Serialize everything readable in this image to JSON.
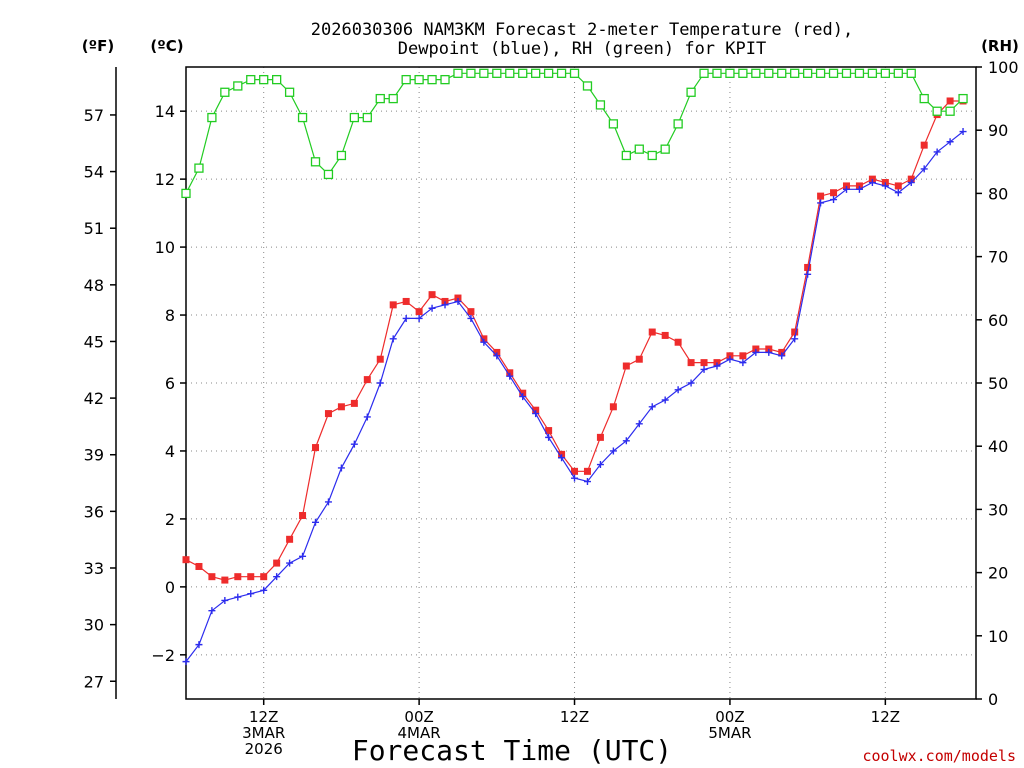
{
  "chart_data": {
    "type": "line",
    "title_lines": [
      "2026030306 NAM3KM Forecast 2-meter Temperature (red),",
      "Dewpoint (blue), RH (green) for KPIT"
    ],
    "xlabel": "Forecast Time (UTC)",
    "credit": "coolwx.com/models",
    "units": {
      "left_f": "(ºF)",
      "left_c": "(ºC)",
      "right": "(RH)"
    },
    "hour_range": [
      0,
      61
    ],
    "x_ticks": [
      {
        "hour": 6,
        "lines": [
          "12Z",
          "3MAR",
          "2026"
        ]
      },
      {
        "hour": 18,
        "lines": [
          "00Z",
          "4MAR"
        ]
      },
      {
        "hour": 30,
        "lines": [
          "12Z"
        ]
      },
      {
        "hour": 42,
        "lines": [
          "00Z",
          "5MAR"
        ]
      },
      {
        "hour": 54,
        "lines": [
          "12Z"
        ]
      }
    ],
    "y_celsius": {
      "range": [
        -3.3,
        15.3
      ],
      "ticks": [
        -2,
        0,
        2,
        4,
        6,
        8,
        10,
        12,
        14
      ]
    },
    "y_fahrenheit": {
      "ticks": [
        27,
        30,
        33,
        36,
        39,
        42,
        45,
        48,
        51,
        54,
        57
      ]
    },
    "y_rh": {
      "range": [
        0,
        100
      ],
      "ticks": [
        0,
        10,
        20,
        30,
        40,
        50,
        60,
        70,
        80,
        90,
        100
      ]
    },
    "series": [
      {
        "name": "Temperature",
        "unit": "degC",
        "color": "#ee2c2c",
        "marker": "filled-square",
        "values": [
          0.8,
          0.6,
          0.3,
          0.2,
          0.3,
          0.3,
          0.3,
          0.7,
          1.4,
          2.1,
          4.1,
          5.1,
          5.3,
          5.4,
          6.1,
          6.7,
          8.3,
          8.4,
          8.1,
          8.6,
          8.4,
          8.5,
          8.1,
          7.3,
          6.9,
          6.3,
          5.7,
          5.2,
          4.6,
          3.9,
          3.4,
          3.4,
          4.4,
          5.3,
          6.5,
          6.7,
          7.5,
          7.4,
          7.2,
          6.6,
          6.6,
          6.6,
          6.8,
          6.8,
          7.0,
          7.0,
          6.9,
          7.5,
          9.4,
          11.5,
          11.6,
          11.8,
          11.8,
          12.0,
          11.9,
          11.8,
          12.0,
          13.0,
          13.9,
          14.3,
          14.3
        ]
      },
      {
        "name": "Dewpoint",
        "unit": "degC",
        "color": "#2c2cee",
        "marker": "plus",
        "values": [
          -2.2,
          -1.7,
          -0.7,
          -0.4,
          -0.3,
          -0.2,
          -0.1,
          0.3,
          0.7,
          0.9,
          1.9,
          2.5,
          3.5,
          4.2,
          5.0,
          6.0,
          7.3,
          7.9,
          7.9,
          8.2,
          8.3,
          8.4,
          7.9,
          7.2,
          6.8,
          6.2,
          5.6,
          5.1,
          4.4,
          3.8,
          3.2,
          3.1,
          3.6,
          4.0,
          4.3,
          4.8,
          5.3,
          5.5,
          5.8,
          6.0,
          6.4,
          6.5,
          6.7,
          6.6,
          6.9,
          6.9,
          6.8,
          7.3,
          9.2,
          11.3,
          11.4,
          11.7,
          11.7,
          11.9,
          11.8,
          11.6,
          11.9,
          12.3,
          12.8,
          13.1,
          13.4
        ]
      },
      {
        "name": "Relative Humidity",
        "unit": "percent",
        "color": "#22cc22",
        "marker": "open-square",
        "values": [
          80,
          84,
          92,
          96,
          97,
          98,
          98,
          98,
          96,
          92,
          85,
          83,
          86,
          92,
          92,
          95,
          95,
          98,
          98,
          98,
          98,
          99,
          99,
          99,
          99,
          99,
          99,
          99,
          99,
          99,
          99,
          97,
          94,
          91,
          86,
          87,
          86,
          87,
          91,
          96,
          99,
          99,
          99,
          99,
          99,
          99,
          99,
          99,
          99,
          99,
          99,
          99,
          99,
          99,
          99,
          99,
          99,
          95,
          93,
          93,
          95
        ]
      }
    ]
  }
}
